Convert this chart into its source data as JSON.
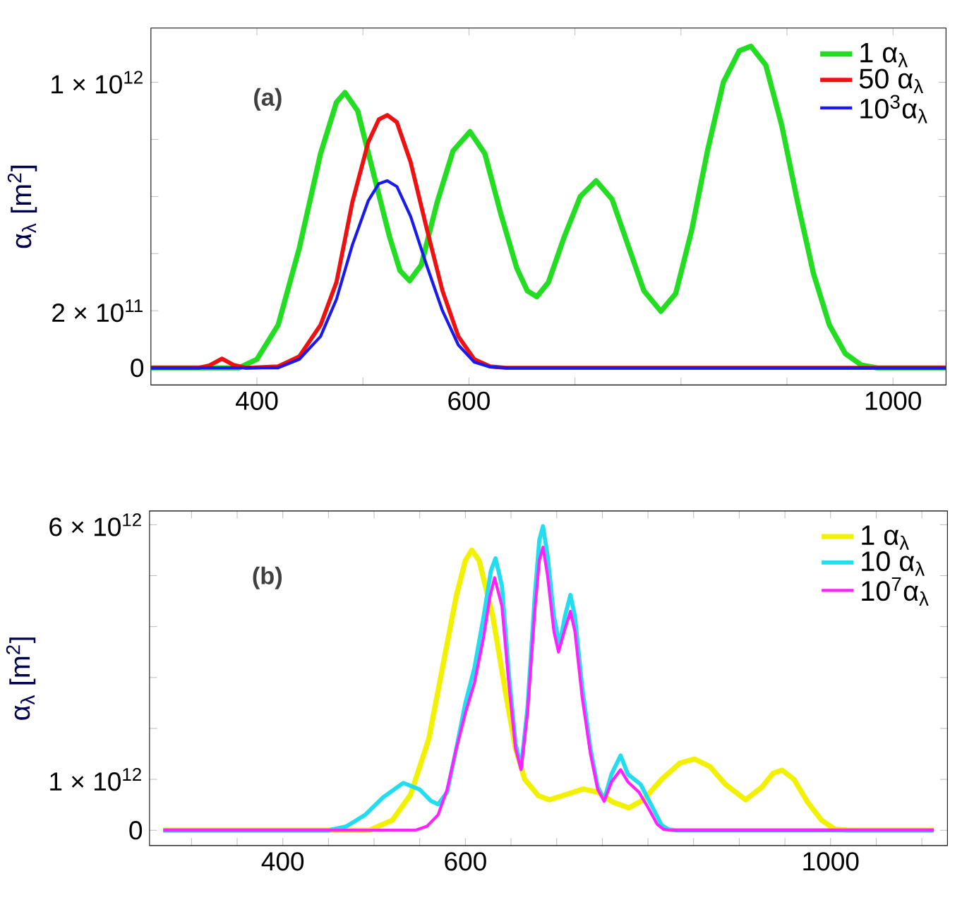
{
  "chart_data": [
    {
      "type": "line",
      "ylabel": "α$_{λ}$ [m$^{2}$]",
      "annotations": [
        "(a)"
      ],
      "legend": "top right",
      "grid": false,
      "xlim": [
        300,
        1050
      ],
      "ylim": [
        -60000000000.0,
        1190000000000.0
      ],
      "xticks": [
        400,
        {
          "value": 500,
          "label": null
        },
        600,
        {
          "value": 700,
          "label": null
        },
        {
          "value": 800,
          "label": null
        },
        {
          "value": 900,
          "label": null
        },
        1000
      ],
      "yticks": [
        0,
        {
          "value": 200000000000.0,
          "label": "2 × 10$^{11}$"
        },
        {
          "value": 400000000000.0,
          "label": null
        },
        {
          "value": 600000000000.0,
          "label": null
        },
        {
          "value": 800000000000.0,
          "label": null
        },
        {
          "value": 1000000000000.0,
          "label": "1 × 10$^{12}$"
        }
      ],
      "series": [
        {
          "name": "1  α$_{λ}$",
          "color": "#22dd22",
          "x": [
            300,
            383,
            400,
            420,
            440,
            460,
            475,
            483,
            495,
            510,
            525,
            535,
            544,
            555,
            570,
            585,
            601,
            615,
            630,
            645,
            655,
            664,
            675,
            690,
            705,
            720,
            735,
            750,
            765,
            781,
            795,
            810,
            825,
            840,
            855,
            866,
            880,
            895,
            910,
            925,
            940,
            955,
            970,
            985,
            1050
          ],
          "values": [
            0,
            0,
            30000000000.0,
            150000000000.0,
            420000000000.0,
            750000000000.0,
            930000000000.0,
            964000000000.0,
            900000000000.0,
            680000000000.0,
            460000000000.0,
            340000000000.0,
            305000000000.0,
            360000000000.0,
            580000000000.0,
            760000000000.0,
            827000000000.0,
            750000000000.0,
            540000000000.0,
            350000000000.0,
            270000000000.0,
            249000000000.0,
            300000000000.0,
            460000000000.0,
            600000000000.0,
            655000000000.0,
            590000000000.0,
            430000000000.0,
            270000000000.0,
            198000000000.0,
            260000000000.0,
            480000000000.0,
            760000000000.0,
            1000000000000.0,
            1110000000000.0,
            1126000000000.0,
            1060000000000.0,
            850000000000.0,
            580000000000.0,
            330000000000.0,
            150000000000.0,
            50000000000.0,
            10000000000.0,
            0,
            0
          ]
        },
        {
          "name": "50 α$_{λ}$",
          "color": "#ee1111",
          "x": [
            300,
            345,
            355,
            367,
            378,
            390,
            420,
            440,
            460,
            475,
            490,
            505,
            515,
            523,
            532,
            545,
            560,
            575,
            590,
            605,
            620,
            635,
            1050
          ],
          "values": [
            0,
            0,
            8000000000.0,
            32000000000.0,
            10000000000.0,
            0,
            5000000000.0,
            40000000000.0,
            150000000000.0,
            300000000000.0,
            580000000000.0,
            790000000000.0,
            870000000000.0,
            885000000000.0,
            860000000000.0,
            720000000000.0,
            490000000000.0,
            270000000000.0,
            110000000000.0,
            30000000000.0,
            5000000000.0,
            0,
            0
          ]
        },
        {
          "name": "10$^{3}$α$_{λ}$",
          "color": "#1a1aee",
          "x": [
            300,
            420,
            440,
            460,
            475,
            490,
            505,
            515,
            523,
            532,
            545,
            560,
            575,
            590,
            605,
            620,
            635,
            1050
          ],
          "values": [
            0,
            0,
            30000000000.0,
            110000000000.0,
            240000000000.0,
            430000000000.0,
            585000000000.0,
            645000000000.0,
            655000000000.0,
            635000000000.0,
            530000000000.0,
            360000000000.0,
            200000000000.0,
            80000000000.0,
            20000000000.0,
            3000000000.0,
            0,
            0
          ]
        }
      ]
    },
    {
      "type": "line",
      "ylabel": "α$_{λ}$ [m$^{2}$]",
      "annotations": [
        "(b)"
      ],
      "legend": "top right",
      "grid": false,
      "xlim": [
        254,
        1128
      ],
      "ylim": [
        -300000000000.0,
        6270000000000.0
      ],
      "xticks": [
        {
          "value": 300,
          "label": null
        },
        {
          "value": 350,
          "label": null
        },
        400,
        {
          "value": 450,
          "label": null
        },
        {
          "value": 500,
          "label": null
        },
        {
          "value": 550,
          "label": null
        },
        600,
        {
          "value": 650,
          "label": null
        },
        {
          "value": 700,
          "label": null
        },
        {
          "value": 750,
          "label": null
        },
        {
          "value": 800,
          "label": null
        },
        {
          "value": 850,
          "label": null
        },
        {
          "value": 900,
          "label": null
        },
        {
          "value": 950,
          "label": null
        },
        1000,
        {
          "value": 1050,
          "label": null
        },
        {
          "value": 1100,
          "label": null
        }
      ],
      "yticks": [
        0,
        {
          "value": 1000000000000.0,
          "label": "1 × 10$^{12}$"
        },
        {
          "value": 2000000000000.0,
          "label": null
        },
        {
          "value": 3000000000000.0,
          "label": null
        },
        {
          "value": 4000000000000.0,
          "label": null
        },
        {
          "value": 5000000000000.0,
          "label": null
        },
        {
          "value": 6000000000000.0,
          "label": "6 × 10$^{12}$"
        }
      ],
      "series": [
        {
          "name": "1  α$_{λ}$",
          "color": "#f2f200",
          "x": [
            269,
            495,
            520,
            540,
            560,
            575,
            590,
            600,
            607,
            615,
            630,
            645,
            655,
            665,
            680,
            692,
            710,
            729,
            745,
            762,
            779,
            795,
            815,
            835,
            851,
            868,
            885,
            907,
            925,
            937,
            947,
            960,
            975,
            990,
            1005,
            1020,
            1113
          ],
          "values": [
            0,
            0,
            200000000000.0,
            700000000000.0,
            1800000000000.0,
            3200000000000.0,
            4600000000000.0,
            5300000000000.0,
            5500000000000.0,
            5300000000000.0,
            4200000000000.0,
            2600000000000.0,
            1600000000000.0,
            1000000000000.0,
            680000000000.0,
            600000000000.0,
            700000000000.0,
            810000000000.0,
            750000000000.0,
            550000000000.0,
            440000000000.0,
            600000000000.0,
            1000000000000.0,
            1320000000000.0,
            1400000000000.0,
            1250000000000.0,
            900000000000.0,
            600000000000.0,
            850000000000.0,
            1120000000000.0,
            1180000000000.0,
            1000000000000.0,
            550000000000.0,
            200000000000.0,
            20000000000.0,
            0,
            0
          ]
        },
        {
          "name": "10 α$_{λ}$",
          "color": "#22ddf0",
          "x": [
            269,
            450,
            470,
            490,
            510,
            532,
            550,
            562,
            570,
            580,
            590,
            600,
            610,
            620,
            628,
            633,
            640,
            648,
            655,
            661,
            668,
            676,
            681,
            685,
            690,
            697,
            703,
            709,
            715,
            720,
            728,
            737,
            745,
            752,
            760,
            770,
            778,
            792,
            805,
            815,
            822,
            830,
            1113
          ],
          "values": [
            0,
            0,
            80000000000.0,
            300000000000.0,
            650000000000.0,
            930000000000.0,
            800000000000.0,
            580000000000.0,
            510000000000.0,
            750000000000.0,
            1600000000000.0,
            2500000000000.0,
            3200000000000.0,
            4200000000000.0,
            5100000000000.0,
            5340000000000.0,
            4800000000000.0,
            3000000000000.0,
            1700000000000.0,
            1230000000000.0,
            2400000000000.0,
            4600000000000.0,
            5700000000000.0,
            5970000000000.0,
            5400000000000.0,
            4200000000000.0,
            3640000000000.0,
            4200000000000.0,
            4620000000000.0,
            4200000000000.0,
            2800000000000.0,
            1600000000000.0,
            850000000000.0,
            600000000000.0,
            1100000000000.0,
            1470000000000.0,
            1100000000000.0,
            900000000000.0,
            450000000000.0,
            100000000000.0,
            20000000000.0,
            0,
            0
          ]
        },
        {
          "name": "10$^{7}$α$_{λ}$",
          "color": "#ff22ff",
          "x": [
            269,
            545,
            558,
            570,
            580,
            590,
            600,
            610,
            620,
            627,
            632,
            640,
            648,
            655,
            661,
            668,
            676,
            681,
            685,
            690,
            697,
            702,
            709,
            715,
            720,
            728,
            737,
            745,
            752,
            760,
            770,
            778,
            790,
            800,
            810,
            817,
            825,
            1113
          ],
          "values": [
            0,
            0,
            80000000000.0,
            300000000000.0,
            800000000000.0,
            1600000000000.0,
            2300000000000.0,
            2900000000000.0,
            3800000000000.0,
            4600000000000.0,
            4960000000000.0,
            4400000000000.0,
            2800000000000.0,
            1600000000000.0,
            1190000000000.0,
            2300000000000.0,
            4300000000000.0,
            5300000000000.0,
            5560000000000.0,
            5000000000000.0,
            3900000000000.0,
            3500000000000.0,
            3950000000000.0,
            4300000000000.0,
            3900000000000.0,
            2600000000000.0,
            1500000000000.0,
            800000000000.0,
            570000000000.0,
            950000000000.0,
            1190000000000.0,
            950000000000.0,
            750000000000.0,
            450000000000.0,
            120000000000.0,
            20000000000.0,
            0,
            0
          ]
        }
      ]
    }
  ]
}
